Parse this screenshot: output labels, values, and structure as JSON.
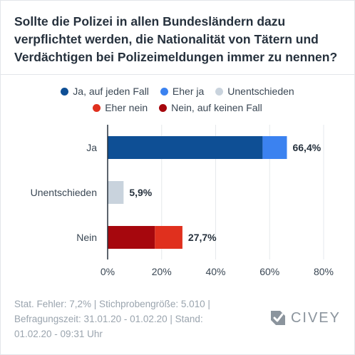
{
  "question": "Sollte die Polizei in allen Bundesländern dazu verpflichtet werden, die Nationalität von Tätern und Verdächtigen bei Polizeimeldungen immer zu nennen?",
  "legend": [
    {
      "label": "Ja, auf jeden Fall",
      "color": "#0e4f95"
    },
    {
      "label": "Eher ja",
      "color": "#3b82f0"
    },
    {
      "label": "Unentschieden",
      "color": "#c9d3dd"
    },
    {
      "label": "Eher nein",
      "color": "#e0301e"
    },
    {
      "label": "Nein, auf keinen Fall",
      "color": "#a6070d"
    }
  ],
  "chart_data": {
    "type": "bar",
    "orientation": "horizontal",
    "stacked": true,
    "categories": [
      "Ja",
      "Unentschieden",
      "Nein"
    ],
    "series": [
      {
        "name": "Ja, auf jeden Fall",
        "values": [
          57.4,
          0,
          0
        ]
      },
      {
        "name": "Eher ja",
        "values": [
          9.0,
          0,
          0
        ]
      },
      {
        "name": "Unentschieden",
        "values": [
          0,
          5.9,
          0
        ]
      },
      {
        "name": "Nein, auf keinen Fall",
        "values": [
          0,
          0,
          17.5
        ]
      },
      {
        "name": "Eher nein",
        "values": [
          0,
          0,
          10.2
        ]
      }
    ],
    "totals": [
      "66,4%",
      "5,9%",
      "27,7%"
    ],
    "xticks": [
      "0%",
      "20%",
      "40%",
      "60%",
      "80%"
    ],
    "xlim": [
      0,
      80
    ],
    "grid": true,
    "legend_position": "top"
  },
  "footer": {
    "line1": "Stat. Fehler: 7,2% | Stichprobengröße: 5.010 |",
    "line2": "Befragungszeit: 31.01.20 - 01.02.20 | Stand:",
    "line3": "01.02.20 - 09:31 Uhr"
  },
  "logo": {
    "text": "CIVEY"
  }
}
